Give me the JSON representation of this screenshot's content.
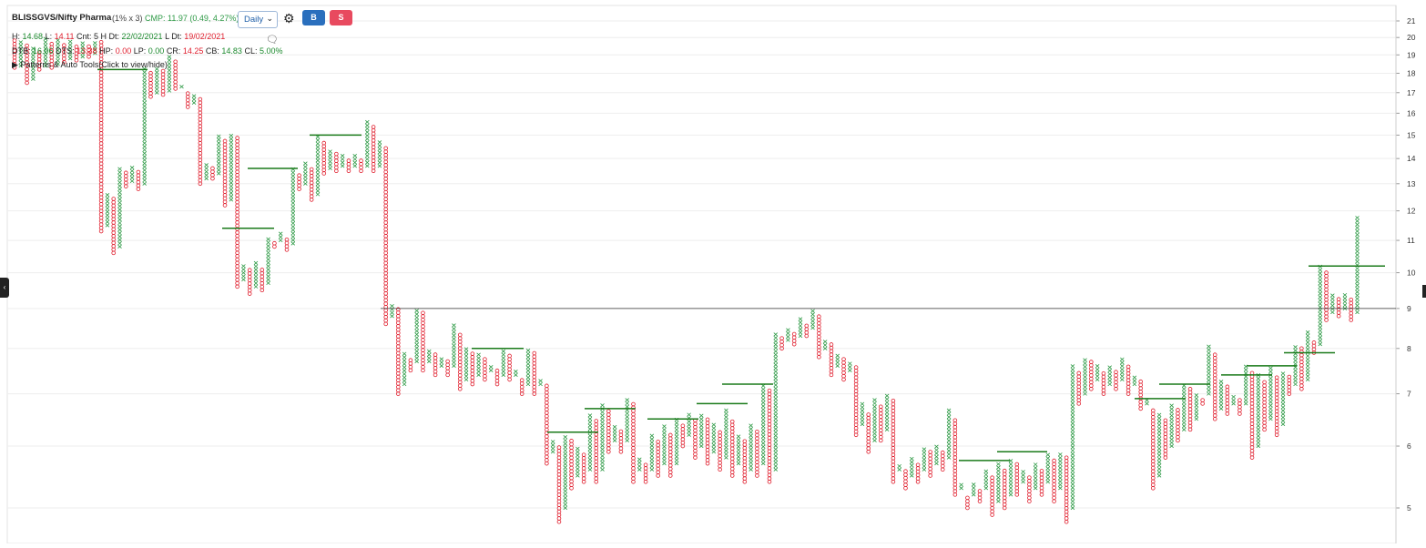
{
  "header": {
    "symbol": "BLISSGVS/Nifty Pharma",
    "box_info": "(1% x 3)",
    "cmp": "CMP: 11.97 (0.49, 4.27%)",
    "interval_selected": "Daily",
    "buy_label": "B",
    "sell_label": "S",
    "stats1": {
      "h_label": "H:",
      "h": "14.68",
      "l_label": "L:",
      "l": "14.11",
      "cnt": "Cnt: 5 H Dt:",
      "hdt": "22/02/2021",
      "ldt_label": "L Dt:",
      "ldt": "19/02/2021"
    },
    "stats2": {
      "dtb_label": "DTB:",
      "dtb": "16.06",
      "dts_label": "DTS:",
      "dts": "13.38",
      "hp_label": "HP:",
      "hp": "0.00",
      "lp_label": "LP:",
      "lp": "0.00",
      "cr_label": "CR:",
      "cr": "14.25",
      "cb_label": "CB:",
      "cb": "14.83",
      "cl_label": "CL:",
      "cl": "5.00%"
    },
    "patterns_label": "Patterns & Auto Tools(Click to view/hide)"
  },
  "chart_data": {
    "type": "point-and-figure",
    "scale": "log",
    "box_size": "1%",
    "reversal": 3,
    "ylim": [
      4.6,
      21.5
    ],
    "yticks": [
      5,
      6,
      7,
      8,
      9,
      10,
      11,
      12,
      13,
      14,
      15,
      16,
      17,
      18,
      19,
      20,
      21
    ],
    "reference_level": 9.0,
    "colors": {
      "x": "#2e9a46",
      "o": "#e0202f",
      "resistance": "#1a7a1a",
      "reference": "#333333"
    },
    "columns": [
      [
        "O",
        20.0,
        18.3
      ],
      [
        "X",
        18.4,
        19.8
      ],
      [
        "O",
        19.6,
        17.5
      ],
      [
        "X",
        17.7,
        19.5
      ],
      [
        "O",
        19.3,
        18.2
      ],
      [
        "X",
        18.4,
        20.0
      ],
      [
        "O",
        19.8,
        18.3
      ],
      [
        "X",
        18.5,
        19.9
      ],
      [
        "O",
        19.7,
        18.6
      ],
      [
        "X",
        18.8,
        19.9
      ],
      [
        "O",
        19.6,
        18.7
      ],
      [
        "X",
        18.9,
        19.8
      ],
      [
        "O",
        19.6,
        18.9
      ],
      [
        "X",
        19.1,
        19.8
      ],
      [
        "O",
        19.8,
        11.3
      ],
      [
        "X",
        11.5,
        12.6
      ],
      [
        "O",
        12.5,
        10.6
      ],
      [
        "X",
        10.8,
        13.6
      ],
      [
        "O",
        13.5,
        12.9
      ],
      [
        "X",
        13.1,
        13.7
      ],
      [
        "O",
        13.5,
        12.8
      ],
      [
        "X",
        13.0,
        18.3
      ],
      [
        "O",
        18.1,
        16.8
      ],
      [
        "X",
        17.0,
        18.4
      ],
      [
        "O",
        18.2,
        16.9
      ],
      [
        "X",
        17.1,
        19.0
      ],
      [
        "O",
        18.8,
        17.2
      ],
      [
        "X",
        17.4,
        17.3
      ],
      [
        "O",
        17.1,
        16.3
      ],
      [
        "X",
        16.5,
        16.9
      ],
      [
        "O",
        16.8,
        13.0
      ],
      [
        "X",
        13.2,
        13.8
      ],
      [
        "O",
        13.7,
        13.2
      ],
      [
        "X",
        13.4,
        15.0
      ],
      [
        "O",
        14.8,
        12.2
      ],
      [
        "X",
        12.4,
        15.0
      ],
      [
        "O",
        14.9,
        9.6
      ],
      [
        "X",
        9.8,
        10.2
      ],
      [
        "O",
        10.1,
        9.4
      ],
      [
        "X",
        9.6,
        10.3
      ],
      [
        "O",
        10.1,
        9.5
      ],
      [
        "X",
        9.7,
        11.1
      ],
      [
        "O",
        11.0,
        10.8
      ],
      [
        "X",
        11.0,
        11.3
      ],
      [
        "O",
        11.1,
        10.7
      ],
      [
        "X",
        10.9,
        13.6
      ],
      [
        "O",
        13.4,
        12.8
      ],
      [
        "X",
        13.0,
        13.8
      ],
      [
        "O",
        13.6,
        12.4
      ],
      [
        "X",
        12.6,
        15.0
      ],
      [
        "O",
        14.8,
        13.4
      ],
      [
        "X",
        13.6,
        14.4
      ],
      [
        "O",
        14.2,
        13.5
      ],
      [
        "X",
        13.7,
        14.2
      ],
      [
        "O",
        14.0,
        13.5
      ],
      [
        "X",
        13.7,
        14.2
      ],
      [
        "O",
        14.0,
        13.5
      ],
      [
        "X",
        13.7,
        15.7
      ],
      [
        "O",
        15.5,
        13.5
      ],
      [
        "X",
        13.7,
        14.7
      ],
      [
        "O",
        14.5,
        8.6
      ],
      [
        "X",
        8.8,
        9.1
      ],
      [
        "O",
        9.0,
        7.0
      ],
      [
        "X",
        7.2,
        7.9
      ],
      [
        "O",
        7.8,
        7.5
      ],
      [
        "X",
        7.7,
        9.0
      ],
      [
        "O",
        8.9,
        7.5
      ],
      [
        "X",
        7.7,
        8.0
      ],
      [
        "O",
        7.9,
        7.4
      ],
      [
        "X",
        7.6,
        7.8
      ],
      [
        "O",
        7.7,
        7.4
      ],
      [
        "X",
        7.6,
        8.6
      ],
      [
        "O",
        8.4,
        7.1
      ],
      [
        "X",
        7.3,
        8.0
      ],
      [
        "O",
        7.9,
        7.2
      ],
      [
        "X",
        7.4,
        7.9
      ],
      [
        "O",
        7.8,
        7.3
      ],
      [
        "X",
        7.5,
        7.6
      ],
      [
        "O",
        7.5,
        7.2
      ],
      [
        "X",
        7.4,
        8.0
      ],
      [
        "O",
        7.9,
        7.3
      ],
      [
        "X",
        7.5,
        7.4
      ],
      [
        "O",
        7.3,
        7.0
      ],
      [
        "X",
        7.2,
        8.0
      ],
      [
        "O",
        7.9,
        7.0
      ],
      [
        "X",
        7.2,
        7.3
      ],
      [
        "O",
        7.2,
        5.7
      ],
      [
        "X",
        5.9,
        6.1
      ],
      [
        "O",
        6.0,
        4.8
      ],
      [
        "X",
        5.0,
        6.2
      ],
      [
        "O",
        6.1,
        5.3
      ],
      [
        "X",
        5.5,
        6.0
      ],
      [
        "O",
        5.9,
        5.4
      ],
      [
        "X",
        5.6,
        6.6
      ],
      [
        "O",
        6.5,
        5.4
      ],
      [
        "X",
        5.6,
        6.8
      ],
      [
        "O",
        6.7,
        5.9
      ],
      [
        "X",
        6.1,
        6.4
      ],
      [
        "O",
        6.3,
        5.9
      ],
      [
        "X",
        6.1,
        6.9
      ],
      [
        "O",
        6.8,
        5.4
      ],
      [
        "X",
        5.6,
        5.8
      ],
      [
        "O",
        5.7,
        5.4
      ],
      [
        "X",
        5.6,
        6.2
      ],
      [
        "O",
        6.1,
        5.5
      ],
      [
        "X",
        5.7,
        6.4
      ],
      [
        "O",
        6.2,
        5.5
      ],
      [
        "X",
        5.7,
        6.5
      ],
      [
        "O",
        6.4,
        6.0
      ],
      [
        "X",
        6.2,
        6.6
      ],
      [
        "O",
        6.5,
        5.8
      ],
      [
        "X",
        6.0,
        6.6
      ],
      [
        "O",
        6.5,
        5.7
      ],
      [
        "X",
        5.9,
        6.4
      ],
      [
        "O",
        6.3,
        5.6
      ],
      [
        "X",
        5.8,
        6.7
      ],
      [
        "O",
        6.5,
        5.5
      ],
      [
        "X",
        5.7,
        6.2
      ],
      [
        "O",
        6.1,
        5.4
      ],
      [
        "X",
        5.6,
        6.4
      ],
      [
        "O",
        6.3,
        5.5
      ],
      [
        "X",
        5.7,
        7.2
      ],
      [
        "O",
        7.1,
        5.4
      ],
      [
        "X",
        5.6,
        8.4
      ],
      [
        "O",
        8.3,
        8.0
      ],
      [
        "X",
        8.2,
        8.5
      ],
      [
        "O",
        8.4,
        8.1
      ],
      [
        "X",
        8.3,
        8.8
      ],
      [
        "O",
        8.6,
        8.3
      ],
      [
        "X",
        8.5,
        9.0
      ],
      [
        "O",
        8.8,
        7.8
      ],
      [
        "X",
        8.0,
        8.2
      ],
      [
        "O",
        8.1,
        7.4
      ],
      [
        "X",
        7.6,
        7.9
      ],
      [
        "O",
        7.8,
        7.3
      ],
      [
        "X",
        7.5,
        7.7
      ],
      [
        "O",
        7.6,
        6.2
      ],
      [
        "X",
        6.4,
        6.8
      ],
      [
        "O",
        6.6,
        5.9
      ],
      [
        "X",
        6.1,
        6.9
      ],
      [
        "O",
        6.8,
        6.1
      ],
      [
        "X",
        6.3,
        7.0
      ],
      [
        "O",
        6.9,
        5.4
      ],
      [
        "X",
        5.6,
        5.7
      ],
      [
        "O",
        5.6,
        5.3
      ],
      [
        "X",
        5.5,
        5.8
      ],
      [
        "O",
        5.7,
        5.4
      ],
      [
        "X",
        5.6,
        6.0
      ],
      [
        "O",
        5.9,
        5.5
      ],
      [
        "X",
        5.7,
        6.0
      ],
      [
        "O",
        5.9,
        5.6
      ],
      [
        "X",
        5.8,
        6.7
      ],
      [
        "O",
        6.5,
        5.2
      ],
      [
        "X",
        5.4,
        5.3
      ],
      [
        "O",
        5.2,
        5.0
      ],
      [
        "X",
        5.2,
        5.4
      ],
      [
        "O",
        5.3,
        5.1
      ],
      [
        "X",
        5.3,
        5.6
      ],
      [
        "O",
        5.5,
        4.9
      ],
      [
        "X",
        5.1,
        5.7
      ],
      [
        "O",
        5.6,
        5.0
      ],
      [
        "X",
        5.2,
        5.8
      ],
      [
        "O",
        5.7,
        5.2
      ],
      [
        "X",
        5.4,
        5.6
      ],
      [
        "O",
        5.5,
        5.1
      ],
      [
        "X",
        5.3,
        5.7
      ],
      [
        "O",
        5.6,
        5.2
      ],
      [
        "X",
        5.4,
        5.9
      ],
      [
        "O",
        5.8,
        5.1
      ],
      [
        "X",
        5.3,
        5.9
      ],
      [
        "O",
        5.8,
        4.8
      ],
      [
        "X",
        5.0,
        7.6
      ],
      [
        "O",
        7.5,
        6.8
      ],
      [
        "X",
        7.0,
        7.8
      ],
      [
        "O",
        7.7,
        7.1
      ],
      [
        "X",
        7.3,
        7.6
      ],
      [
        "O",
        7.5,
        7.0
      ],
      [
        "X",
        7.2,
        7.6
      ],
      [
        "O",
        7.5,
        7.1
      ],
      [
        "X",
        7.3,
        7.8
      ],
      [
        "O",
        7.6,
        7.0
      ],
      [
        "X",
        7.2,
        7.4
      ],
      [
        "O",
        7.3,
        6.7
      ],
      [
        "X",
        6.9,
        6.8
      ],
      [
        "O",
        6.7,
        5.3
      ],
      [
        "X",
        5.5,
        6.6
      ],
      [
        "O",
        6.5,
        5.8
      ],
      [
        "X",
        6.0,
        6.8
      ],
      [
        "O",
        6.7,
        6.1
      ],
      [
        "X",
        6.3,
        7.2
      ],
      [
        "O",
        7.1,
        6.3
      ],
      [
        "X",
        6.5,
        7.0
      ],
      [
        "O",
        6.9,
        6.8
      ],
      [
        "X",
        7.0,
        8.1
      ],
      [
        "O",
        7.9,
        6.5
      ],
      [
        "X",
        6.7,
        7.3
      ],
      [
        "O",
        7.2,
        6.6
      ],
      [
        "X",
        6.8,
        7.0
      ],
      [
        "O",
        6.9,
        6.6
      ],
      [
        "X",
        6.8,
        7.6
      ],
      [
        "O",
        7.5,
        5.8
      ],
      [
        "X",
        6.0,
        7.4
      ],
      [
        "O",
        7.3,
        6.3
      ],
      [
        "X",
        6.5,
        7.6
      ],
      [
        "O",
        7.4,
        6.2
      ],
      [
        "X",
        6.4,
        7.5
      ],
      [
        "O",
        7.4,
        7.0
      ],
      [
        "X",
        7.2,
        8.1
      ],
      [
        "O",
        8.0,
        7.1
      ],
      [
        "X",
        7.3,
        8.4
      ],
      [
        "O",
        8.2,
        7.9
      ],
      [
        "X",
        8.1,
        10.2
      ],
      [
        "O",
        10.0,
        8.7
      ],
      [
        "X",
        8.9,
        9.4
      ],
      [
        "O",
        9.3,
        8.8
      ],
      [
        "X",
        9.0,
        9.4
      ],
      [
        "O",
        9.3,
        8.7
      ],
      [
        "X",
        8.9,
        11.8
      ]
    ],
    "resistance_lines": [
      [
        18.2,
        107,
        162
      ],
      [
        16.9,
        0,
        0
      ],
      [
        11.4,
        244,
        301
      ],
      [
        13.6,
        272,
        327
      ],
      [
        15.0,
        340,
        397
      ],
      [
        8.0,
        518,
        575
      ],
      [
        6.25,
        601,
        657
      ],
      [
        6.7,
        642,
        698
      ],
      [
        6.5,
        711,
        767
      ],
      [
        6.8,
        765,
        821
      ],
      [
        7.2,
        793,
        849
      ],
      [
        5.75,
        1053,
        1109
      ],
      [
        5.9,
        1095,
        1150
      ],
      [
        6.9,
        1246,
        1302
      ],
      [
        7.2,
        1273,
        1329
      ],
      [
        7.4,
        1341,
        1397
      ],
      [
        7.6,
        1369,
        1424
      ],
      [
        7.9,
        1410,
        1466
      ],
      [
        10.2,
        1437,
        1521
      ]
    ],
    "marker_labels": [
      {
        "text": "A",
        "value": 18.3,
        "col": 0
      }
    ]
  }
}
